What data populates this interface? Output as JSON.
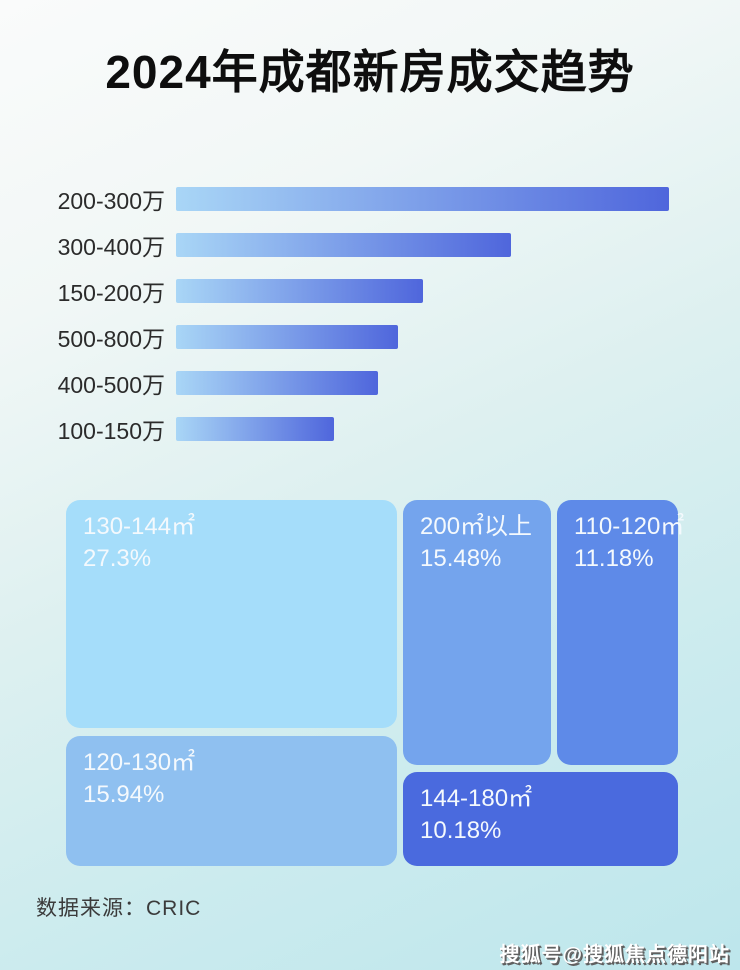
{
  "title": "2024年成都新房成交趋势",
  "chart_data": [
    {
      "type": "bar",
      "orientation": "horizontal",
      "title": "",
      "categories": [
        "200-300万",
        "300-400万",
        "150-200万",
        "500-800万",
        "400-500万",
        "100-150万"
      ],
      "values_pct_of_max": [
        100,
        68,
        50,
        45,
        41,
        32
      ],
      "value_labels_shown": false,
      "legend": "none",
      "grid": false
    },
    {
      "type": "treemap",
      "title": "",
      "items": [
        {
          "label": "130-144㎡",
          "value_label": "27.3%",
          "value": 27.3,
          "color": "#a5ddfa"
        },
        {
          "label": "200㎡以上",
          "value_label": "15.48%",
          "value": 15.48,
          "color": "#74a4ed"
        },
        {
          "label": "110-120㎡",
          "value_label": "11.18%",
          "value": 11.18,
          "color": "#5e8ae8"
        },
        {
          "label": "120-130㎡",
          "value_label": "15.94%",
          "value": 15.94,
          "color": "#8fc0f0"
        },
        {
          "label": "144-180㎡",
          "value_label": "10.18%",
          "value": 10.18,
          "color": "#4a6ade"
        }
      ]
    }
  ],
  "footer": {
    "source_label": "数据来源：CRIC"
  },
  "watermark": {
    "text": "搜狐号@搜狐焦点德阳站"
  },
  "colors": {
    "bar_gradient_start": "#a9d6f6",
    "bar_gradient_end": "#4f66dc",
    "title_text": "#0e0e0e",
    "bar_label_text": "#2b2b2b",
    "block_text": "#f4f9fd",
    "background_top": "#fafbfb",
    "background_bottom": "#bde6ec"
  }
}
